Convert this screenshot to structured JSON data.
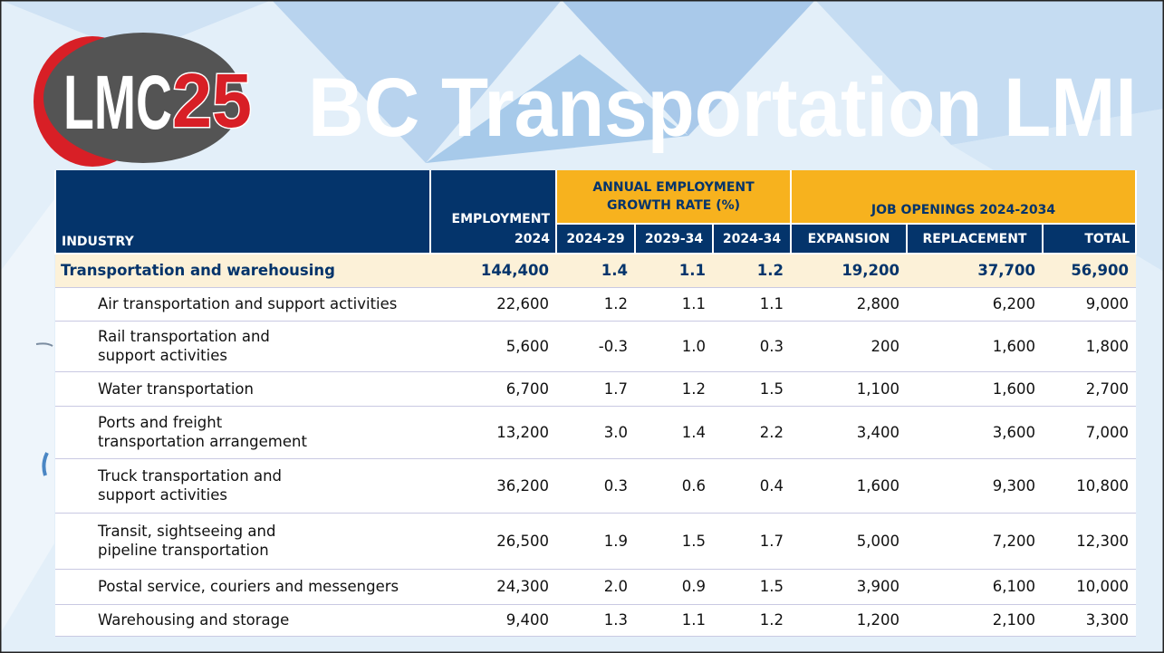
{
  "logo": {
    "text": "LMC",
    "number": "25"
  },
  "title": "BC Transportation LMI",
  "table": {
    "header": {
      "industry": "INDUSTRY",
      "employment": [
        "EMPLOYMENT",
        "2024"
      ],
      "growth": {
        "title": "ANNUAL EMPLOYMENT GROWTH RATE (%)",
        "columns": [
          "2024-29",
          "2029-34",
          "2024-34"
        ]
      },
      "openings": {
        "title": "JOB OPENINGS 2024-2034",
        "columns": [
          "EXPANSION",
          "REPLACEMENT",
          "TOTAL"
        ]
      }
    },
    "rows": [
      {
        "name": [
          "Transportation and warehousing"
        ],
        "values": [
          "144,400",
          "1.4",
          "1.1",
          "1.2",
          "19,200",
          "37,700",
          "56,900"
        ]
      },
      {
        "name": [
          "Air transportation and support activities"
        ],
        "values": [
          "22,600",
          "1.2",
          "1.1",
          "1.1",
          "2,800",
          "6,200",
          "9,000"
        ]
      },
      {
        "name": [
          "Rail transportation and",
          "support activities"
        ],
        "values": [
          "5,600",
          "-0.3",
          "1.0",
          "0.3",
          "200",
          "1,600",
          "1,800"
        ]
      },
      {
        "name": [
          "Water transportation"
        ],
        "values": [
          "6,700",
          "1.7",
          "1.2",
          "1.5",
          "1,100",
          "1,600",
          "2,700"
        ]
      },
      {
        "name": [
          "Ports and freight",
          "transportation arrangement"
        ],
        "values": [
          "13,200",
          "3.0",
          "1.4",
          "2.2",
          "3,400",
          "3,600",
          "7,000"
        ]
      },
      {
        "name": [
          "Truck transportation and",
          "support activities"
        ],
        "values": [
          "36,200",
          "0.3",
          "0.6",
          "0.4",
          "1,600",
          "9,300",
          "10,800"
        ]
      },
      {
        "name": [
          "Transit, sightseeing and",
          "pipeline transportation"
        ],
        "values": [
          "26,500",
          "1.9",
          "1.5",
          "1.7",
          "5,000",
          "7,200",
          "12,300"
        ]
      },
      {
        "name": [
          "Postal service, couriers and messengers"
        ],
        "values": [
          "24,300",
          "2.0",
          "0.9",
          "1.5",
          "3,900",
          "6,100",
          "10,000"
        ]
      },
      {
        "name": [
          "Warehousing and storage"
        ],
        "values": [
          "9,400",
          "1.3",
          "1.1",
          "1.2",
          "1,200",
          "2,100",
          "3,300"
        ]
      }
    ]
  }
}
